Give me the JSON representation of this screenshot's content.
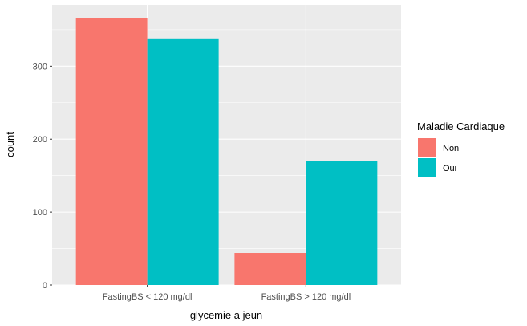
{
  "chart_data": {
    "type": "bar",
    "layout": "grouped",
    "xlabel": "glycemie a jeun",
    "ylabel": "count",
    "categories": [
      "FastingBS < 120 mg/dl",
      "FastingBS > 120 mg/dl"
    ],
    "series": [
      {
        "name": "Non",
        "color": "#F8766D",
        "values": [
          366,
          44
        ]
      },
      {
        "name": "Oui",
        "color": "#00BFC4",
        "values": [
          338,
          170
        ]
      }
    ],
    "ylim": [
      0,
      384
    ],
    "yticks": [
      0,
      100,
      200,
      300
    ],
    "grid": true,
    "legend": {
      "title": "Maladie Cardiaque",
      "placement": "right"
    },
    "panel_color": "#EBEBEB",
    "grid_color": "#FFFFFF"
  }
}
